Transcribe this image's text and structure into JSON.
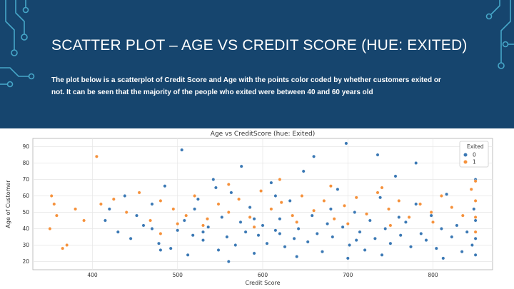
{
  "slide": {
    "title": "SCATTER PLOT – AGE VS CREDIT SCORE (HUE: EXITED)",
    "description": "The plot below is a scatterplot of Credit Score and Age with the points color coded by whether customers exited or not. It can be seen that the majority of the people who exited were between 40 and 60 years old"
  },
  "colors": {
    "header_bg": "#16456e",
    "circuit": "#4fb8d8",
    "exited_0": "#3a78b4",
    "exited_1": "#f5913b"
  },
  "chart_data": {
    "type": "scatter",
    "title": "Age vs CreditScore (hue: Exited)",
    "xlabel": "Credit Score",
    "ylabel": "Age of Customer",
    "xlim": [
      330,
      870
    ],
    "ylim": [
      15,
      95
    ],
    "xticks": [
      400,
      500,
      600,
      700,
      800
    ],
    "yticks": [
      20,
      30,
      40,
      50,
      60,
      70,
      80,
      90
    ],
    "grid": true,
    "legend": {
      "title": "Exited",
      "placement": "top-right",
      "entries": [
        "0",
        "1"
      ]
    },
    "series": [
      {
        "name": "0",
        "points": [
          [
            415,
            45
          ],
          [
            420,
            52
          ],
          [
            430,
            38
          ],
          [
            438,
            60
          ],
          [
            445,
            34
          ],
          [
            452,
            48
          ],
          [
            460,
            42
          ],
          [
            470,
            55
          ],
          [
            478,
            31
          ],
          [
            485,
            66
          ],
          [
            492,
            28
          ],
          [
            500,
            39
          ],
          [
            505,
            88
          ],
          [
            508,
            45
          ],
          [
            512,
            24
          ],
          [
            518,
            36
          ],
          [
            524,
            58
          ],
          [
            530,
            33
          ],
          [
            536,
            41
          ],
          [
            542,
            70
          ],
          [
            548,
            27
          ],
          [
            552,
            47
          ],
          [
            558,
            35
          ],
          [
            563,
            62
          ],
          [
            568,
            30
          ],
          [
            574,
            44
          ],
          [
            580,
            38
          ],
          [
            585,
            53
          ],
          [
            590,
            25
          ],
          [
            595,
            36
          ],
          [
            600,
            42
          ],
          [
            605,
            31
          ],
          [
            610,
            68
          ],
          [
            615,
            39
          ],
          [
            620,
            46
          ],
          [
            626,
            29
          ],
          [
            632,
            57
          ],
          [
            637,
            34
          ],
          [
            642,
            40
          ],
          [
            648,
            75
          ],
          [
            653,
            32
          ],
          [
            658,
            48
          ],
          [
            664,
            37
          ],
          [
            670,
            26
          ],
          [
            676,
            43
          ],
          [
            682,
            35
          ],
          [
            688,
            64
          ],
          [
            694,
            41
          ],
          [
            698,
            92
          ],
          [
            702,
            30
          ],
          [
            708,
            50
          ],
          [
            714,
            38
          ],
          [
            720,
            27
          ],
          [
            726,
            45
          ],
          [
            732,
            34
          ],
          [
            738,
            59
          ],
          [
            744,
            40
          ],
          [
            750,
            31
          ],
          [
            756,
            72
          ],
          [
            762,
            36
          ],
          [
            768,
            44
          ],
          [
            774,
            29
          ],
          [
            780,
            55
          ],
          [
            786,
            37
          ],
          [
            792,
            33
          ],
          [
            798,
            48
          ],
          [
            804,
            28
          ],
          [
            810,
            40
          ],
          [
            816,
            61
          ],
          [
            822,
            35
          ],
          [
            828,
            42
          ],
          [
            834,
            26
          ],
          [
            840,
            38
          ],
          [
            846,
            30
          ],
          [
            848,
            52
          ],
          [
            850,
            45
          ],
          [
            850,
            34
          ],
          [
            850,
            24
          ],
          [
            850,
            70
          ],
          [
            850,
            81
          ],
          [
            545,
            65
          ],
          [
            575,
            78
          ],
          [
            615,
            60
          ],
          [
            660,
            84
          ],
          [
            735,
            85
          ],
          [
            780,
            80
          ],
          [
            470,
            40
          ],
          [
            520,
            52
          ],
          [
            590,
            46
          ],
          [
            700,
            22
          ],
          [
            740,
            24
          ],
          [
            812,
            22
          ],
          [
            480,
            27
          ],
          [
            640,
            23
          ],
          [
            560,
            20
          ],
          [
            620,
            37
          ],
          [
            680,
            52
          ],
          [
            760,
            47
          ],
          [
            530,
            38
          ],
          [
            710,
            33
          ]
        ]
      },
      {
        "name": "1",
        "points": [
          [
            350,
            40
          ],
          [
            352,
            60
          ],
          [
            355,
            55
          ],
          [
            358,
            48
          ],
          [
            365,
            28
          ],
          [
            370,
            30
          ],
          [
            380,
            52
          ],
          [
            390,
            45
          ],
          [
            405,
            84
          ],
          [
            410,
            55
          ],
          [
            425,
            58
          ],
          [
            440,
            50
          ],
          [
            455,
            62
          ],
          [
            468,
            45
          ],
          [
            480,
            57
          ],
          [
            495,
            52
          ],
          [
            510,
            48
          ],
          [
            520,
            60
          ],
          [
            535,
            46
          ],
          [
            548,
            55
          ],
          [
            560,
            50
          ],
          [
            572,
            58
          ],
          [
            585,
            47
          ],
          [
            598,
            63
          ],
          [
            610,
            52
          ],
          [
            622,
            56
          ],
          [
            635,
            48
          ],
          [
            646,
            60
          ],
          [
            660,
            51
          ],
          [
            672,
            57
          ],
          [
            684,
            46
          ],
          [
            696,
            54
          ],
          [
            710,
            59
          ],
          [
            722,
            49
          ],
          [
            735,
            62
          ],
          [
            748,
            52
          ],
          [
            760,
            57
          ],
          [
            772,
            47
          ],
          [
            785,
            55
          ],
          [
            798,
            50
          ],
          [
            810,
            60
          ],
          [
            822,
            53
          ],
          [
            835,
            48
          ],
          [
            845,
            64
          ],
          [
            850,
            57
          ],
          [
            850,
            47
          ],
          [
            850,
            38
          ],
          [
            850,
            69
          ],
          [
            500,
            43
          ],
          [
            530,
            42
          ],
          [
            590,
            41
          ],
          [
            640,
            44
          ],
          [
            700,
            43
          ],
          [
            750,
            42
          ],
          [
            800,
            44
          ],
          [
            620,
            70
          ],
          [
            560,
            67
          ],
          [
            480,
            37
          ],
          [
            680,
            66
          ],
          [
            740,
            65
          ]
        ]
      }
    ]
  }
}
